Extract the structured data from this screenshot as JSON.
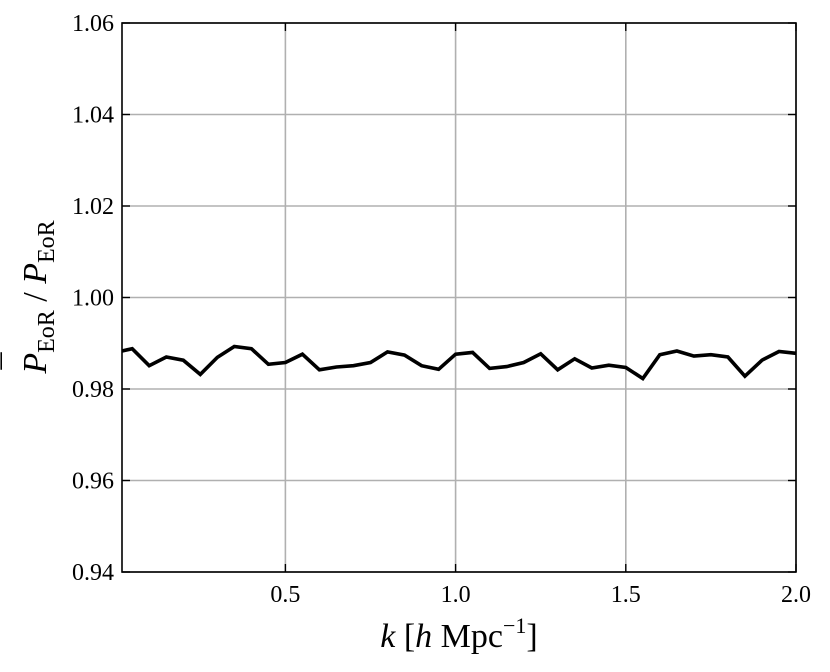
{
  "chart_data": {
    "type": "line",
    "xlabel": {
      "var": "k",
      "open": " [",
      "h": "h",
      "unit": " Mpc",
      "exp": "−1",
      "close": "]"
    },
    "ylabel": {
      "num": "P",
      "num_sub": "EoR",
      "bar": "¯",
      "sep": " / ",
      "den": "P",
      "den_sub": "EoR"
    },
    "xlim": [
      0.02,
      2.0
    ],
    "ylim": [
      0.94,
      1.06
    ],
    "xticks": [
      0.5,
      1.0,
      1.5,
      2.0
    ],
    "xtick_labels": [
      "0.5",
      "1.0",
      "1.5",
      "2.0"
    ],
    "yticks": [
      0.94,
      0.96,
      0.98,
      1.0,
      1.02,
      1.04,
      1.06
    ],
    "ytick_labels": [
      "0.94",
      "0.96",
      "0.98",
      "1.00",
      "1.02",
      "1.04",
      "1.06"
    ],
    "grid": true,
    "series": [
      {
        "color": "#000000",
        "x": [
          0.02,
          0.05,
          0.1,
          0.15,
          0.2,
          0.25,
          0.3,
          0.35,
          0.4,
          0.45,
          0.5,
          0.55,
          0.6,
          0.65,
          0.7,
          0.75,
          0.8,
          0.85,
          0.9,
          0.95,
          1.0,
          1.05,
          1.1,
          1.15,
          1.2,
          1.25,
          1.3,
          1.35,
          1.4,
          1.45,
          1.5,
          1.55,
          1.6,
          1.65,
          1.7,
          1.75,
          1.8,
          1.85,
          1.9,
          1.95,
          2.0
        ],
        "y": [
          0.9883,
          0.9888,
          0.9851,
          0.987,
          0.9863,
          0.9832,
          0.9869,
          0.9893,
          0.9888,
          0.9854,
          0.9858,
          0.9876,
          0.9842,
          0.9848,
          0.9851,
          0.9858,
          0.9881,
          0.9874,
          0.9851,
          0.9843,
          0.9876,
          0.988,
          0.9845,
          0.9849,
          0.9858,
          0.9877,
          0.9842,
          0.9866,
          0.9846,
          0.9852,
          0.9847,
          0.9823,
          0.9875,
          0.9883,
          0.9872,
          0.9875,
          0.987,
          0.9828,
          0.9863,
          0.9882,
          0.9878
        ]
      }
    ]
  }
}
